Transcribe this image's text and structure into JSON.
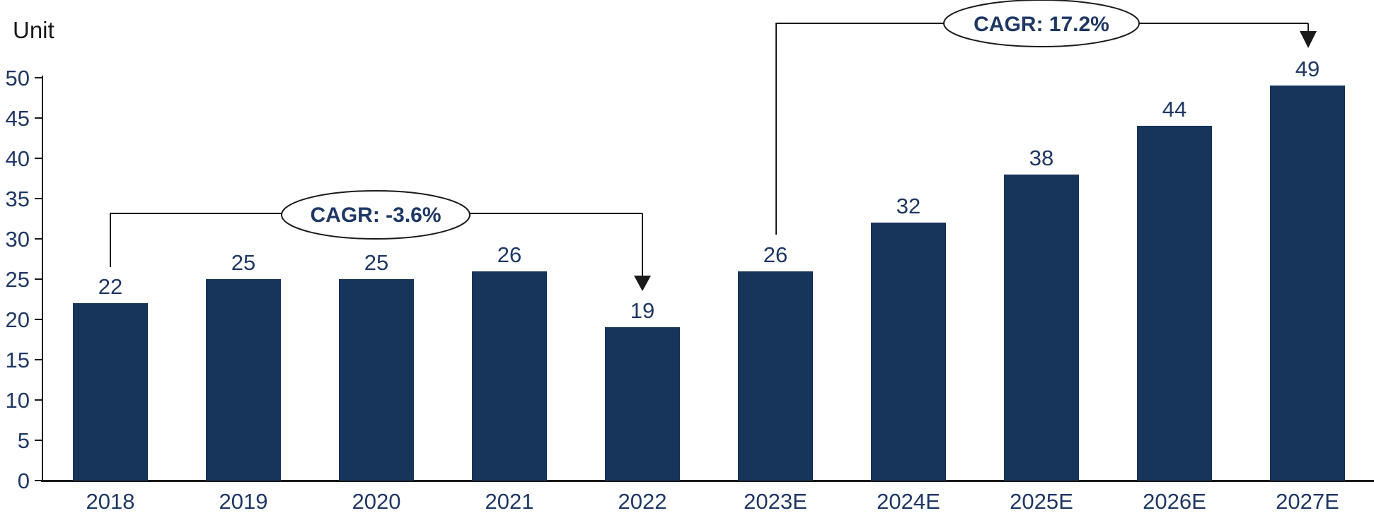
{
  "chart_data": {
    "type": "bar",
    "title": "",
    "ylabel": "Unit",
    "xlabel": "",
    "categories": [
      "2018",
      "2019",
      "2020",
      "2021",
      "2022",
      "2023E",
      "2024E",
      "2025E",
      "2026E",
      "2027E"
    ],
    "values": [
      22,
      25,
      25,
      26,
      19,
      26,
      32,
      38,
      44,
      49
    ],
    "ylim": [
      0,
      50
    ],
    "yticks": [
      0,
      5,
      10,
      15,
      20,
      25,
      30,
      35,
      40,
      45,
      50
    ],
    "grid": false,
    "legend": "none",
    "bar_color": "#17345A",
    "label_color": "#1F3864",
    "axis_color": "#1a1a1a",
    "annotations": [
      {
        "label": "CAGR: -3.6%",
        "from_category": "2018",
        "to_category": "2022"
      },
      {
        "label": "CAGR: 17.2%",
        "from_category": "2023E",
        "to_category": "2027E"
      }
    ]
  }
}
